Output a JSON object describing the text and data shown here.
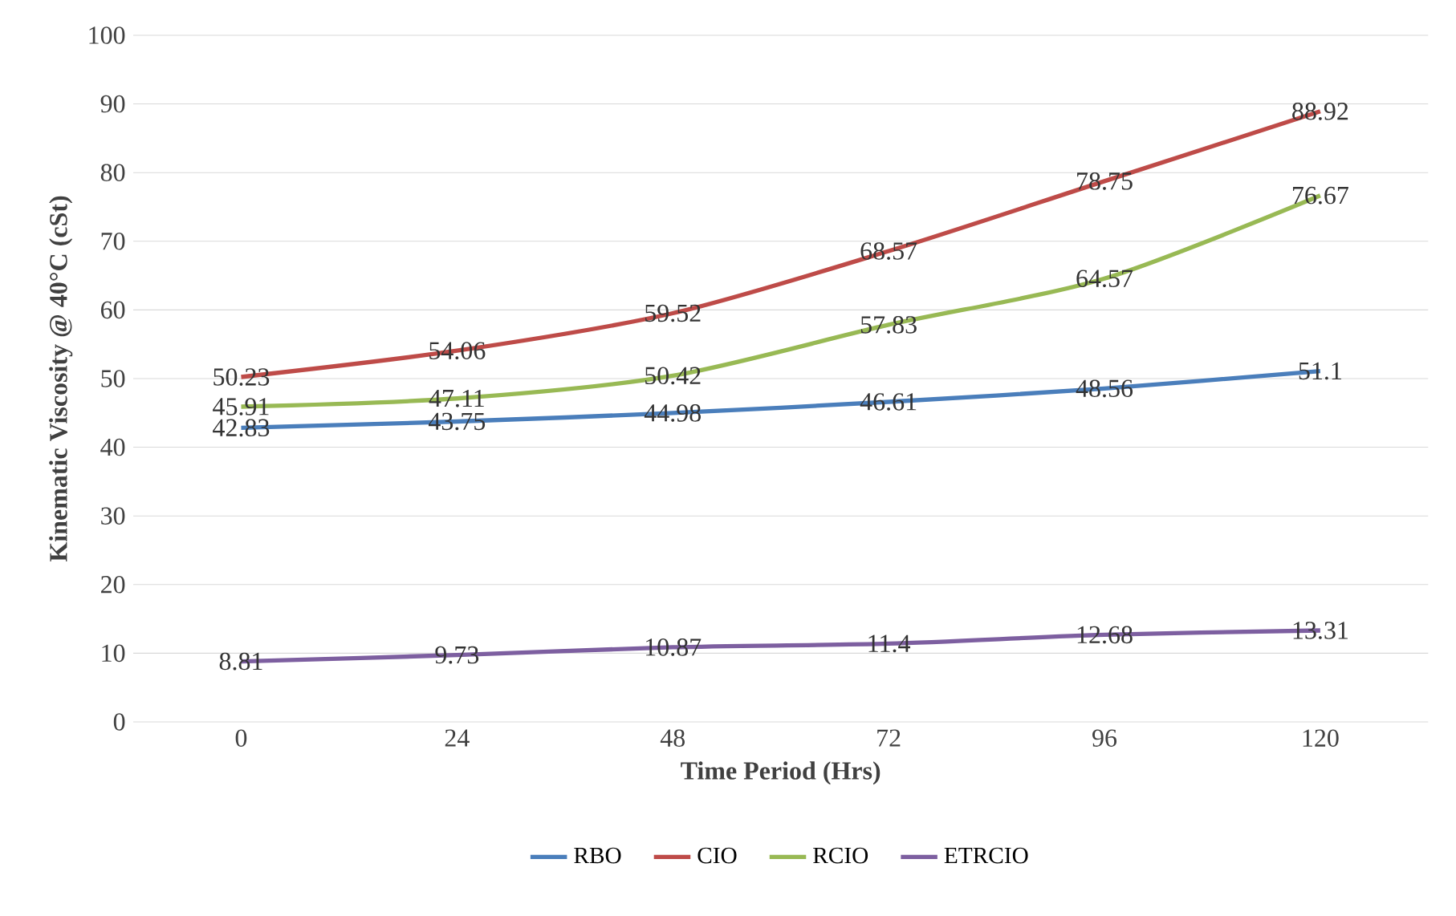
{
  "chart_data": {
    "type": "line",
    "xlabel": "Time Period (Hrs)",
    "ylabel": "Kinematic Viscosity @ 40°C (cSt)",
    "categories": [
      "0",
      "24",
      "48",
      "72",
      "96",
      "120"
    ],
    "series": [
      {
        "name": "RBO",
        "color": "#4a7ebb",
        "values": [
          42.83,
          43.75,
          44.98,
          46.61,
          48.56,
          51.1
        ]
      },
      {
        "name": "CIO",
        "color": "#be4b48",
        "values": [
          50.23,
          54.06,
          59.52,
          68.57,
          78.75,
          88.92
        ]
      },
      {
        "name": "RCIO",
        "color": "#98b954",
        "values": [
          45.91,
          47.11,
          50.42,
          57.83,
          64.57,
          76.67
        ]
      },
      {
        "name": "ETRCIO",
        "color": "#7d5fa0",
        "values": [
          8.81,
          9.73,
          10.87,
          11.4,
          12.68,
          13.31
        ]
      }
    ],
    "ylim": [
      0,
      100
    ],
    "yticks": [
      0,
      10,
      20,
      30,
      40,
      50,
      60,
      70,
      80,
      90,
      100
    ],
    "grid": "y",
    "legend": "bottom",
    "data_labels": true,
    "marker": "none",
    "line_style": "solid"
  }
}
